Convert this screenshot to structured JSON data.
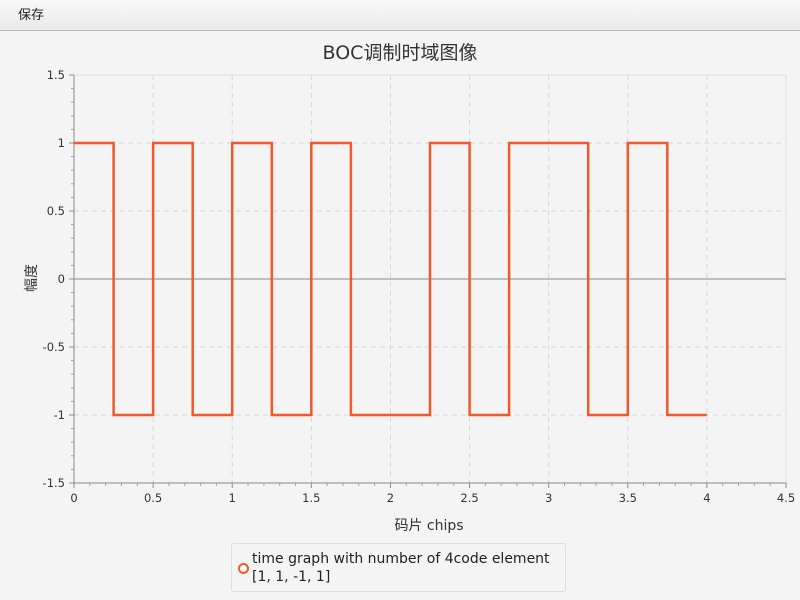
{
  "menu": {
    "save_label": "保存"
  },
  "chart_data": {
    "type": "line",
    "title": "BOC调制时域图像",
    "xlabel": "码片 chips",
    "ylabel": "幅度",
    "xlim": [
      0,
      4.5
    ],
    "ylim": [
      -1.5,
      1.5
    ],
    "x_ticks": [
      0,
      0.5,
      1,
      1.5,
      2,
      2.5,
      3,
      3.5,
      4,
      4.5
    ],
    "x_tick_labels": [
      "0",
      "0.5",
      "1",
      "1.5",
      "2",
      "2.5",
      "3",
      "3.5",
      "4",
      "4.5"
    ],
    "y_ticks": [
      1.5,
      1,
      0.5,
      0,
      -0.5,
      -1,
      -1.5
    ],
    "y_tick_labels": [
      "1.5",
      "1",
      "0.5",
      "0",
      "-0.5",
      "-1",
      "-1.5"
    ],
    "grid": true,
    "legend_position": "bottom",
    "series": [
      {
        "name": "time graph with number of 4code element",
        "name_line2": "[1, 1, -1, 1]",
        "color": "#f0592a",
        "x": [
          0,
          0.25,
          0.25,
          0.5,
          0.5,
          0.75,
          0.75,
          1,
          1,
          1.25,
          1.25,
          1.5,
          1.5,
          1.75,
          1.75,
          2.25,
          2.25,
          2.5,
          2.5,
          2.75,
          2.75,
          3.25,
          3.25,
          3.5,
          3.5,
          3.75,
          3.75,
          4
        ],
        "y": [
          1,
          1,
          -1,
          -1,
          1,
          1,
          -1,
          -1,
          1,
          1,
          -1,
          -1,
          1,
          1,
          -1,
          -1,
          1,
          1,
          -1,
          -1,
          1,
          1,
          -1,
          -1,
          1,
          1,
          -1,
          -1
        ]
      }
    ]
  }
}
